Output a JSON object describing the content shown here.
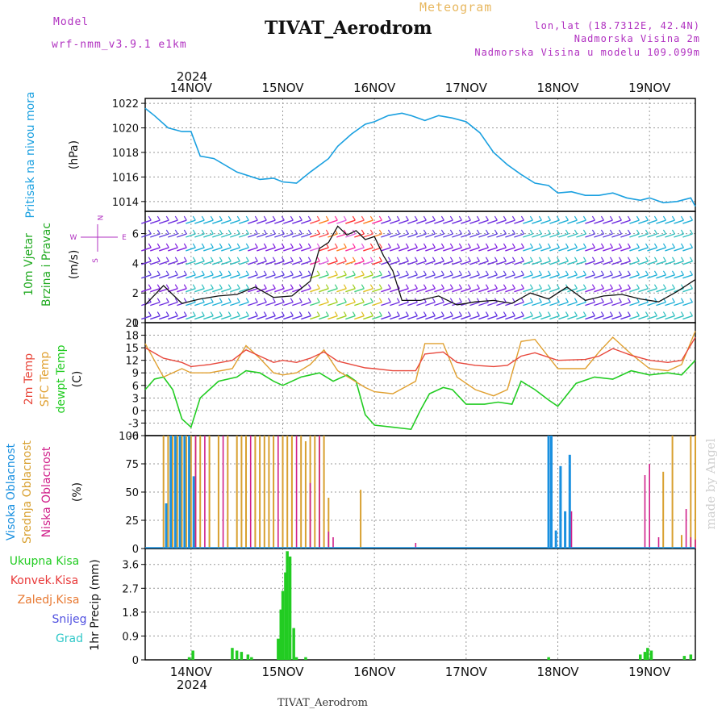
{
  "header": {
    "model_caption": "Model",
    "model_name": "wrf-nmm_v3.9.1 e1km",
    "product": "Meteogram",
    "station_title": "TIVAT_Aerodrom",
    "coords": "lon,lat (18.7312E, 42.4N)",
    "elevation": "Nadmorska Visina 2m",
    "model_elevation": "Nadmorska Visina u modelu 109.099m",
    "year_top": "2024",
    "year_bottom": "2024",
    "footer_station": "TIVAT_Aerodrom",
    "watermark": "made by Angel"
  },
  "colors": {
    "pressure": "#1aa0e0",
    "temp2m": "#e8483c",
    "sfc_temp": "#e0a030",
    "dewpoint": "#22cc22",
    "high_cloud": "#1a90e0",
    "mid_cloud": "#d8a030",
    "low_cloud": "#d0208a",
    "precip_total": "#22cc22",
    "wind_label": "#22aa22",
    "model_text": "#b030c0"
  },
  "chart_data": [
    {
      "type": "line",
      "id": "pressure",
      "ylabel_left": "Pritisak na nivou mora",
      "unit": "(hPa)",
      "x_labels": [
        "14NOV",
        "15NOV",
        "16NOV",
        "17NOV",
        "18NOV",
        "19NOV"
      ],
      "x_range_days": [
        13.5,
        19.5
      ],
      "ylim": [
        1013.2,
        1022.4
      ],
      "yticks": [
        "1014",
        "1016",
        "1018",
        "1020",
        "1022"
      ],
      "series": [
        {
          "name": "Pritisak na nivou mora",
          "x": [
            13.5,
            13.6,
            13.75,
            13.9,
            14.0,
            14.1,
            14.25,
            14.5,
            14.75,
            14.9,
            15.0,
            15.15,
            15.3,
            15.5,
            15.6,
            15.75,
            15.9,
            16.0,
            16.15,
            16.3,
            16.4,
            16.55,
            16.7,
            16.85,
            17.0,
            17.15,
            17.3,
            17.45,
            17.6,
            17.75,
            17.9,
            18.0,
            18.15,
            18.3,
            18.45,
            18.6,
            18.75,
            18.9,
            19.0,
            19.15,
            19.3,
            19.45,
            19.5
          ],
          "y": [
            1021.6,
            1021.0,
            1020.0,
            1019.7,
            1019.7,
            1017.7,
            1017.5,
            1016.4,
            1015.8,
            1015.9,
            1015.6,
            1015.5,
            1016.4,
            1017.5,
            1018.5,
            1019.5,
            1020.3,
            1020.5,
            1021.0,
            1021.2,
            1021.0,
            1020.6,
            1021.0,
            1020.8,
            1020.5,
            1019.6,
            1018.0,
            1017.0,
            1016.2,
            1015.5,
            1015.3,
            1014.7,
            1014.8,
            1014.5,
            1014.5,
            1014.7,
            1014.3,
            1014.1,
            1014.3,
            1013.9,
            1014.0,
            1014.3,
            1013.6
          ]
        }
      ]
    },
    {
      "type": "barb",
      "id": "wind",
      "ylabel_left": "10m Vjetar",
      "ylabel_left2": "Brzina i Pravac",
      "unit": "(m/s)",
      "compass": "N",
      "compass_w": "W",
      "compass_e": "E",
      "compass_s": "S",
      "ylim": [
        0,
        7.5
      ],
      "yticks": [
        "0",
        "2",
        "4",
        "6"
      ],
      "speed_x": [
        13.5,
        13.7,
        13.9,
        14.1,
        14.3,
        14.5,
        14.7,
        14.9,
        15.1,
        15.3,
        15.4,
        15.5,
        15.6,
        15.7,
        15.8,
        15.9,
        16.0,
        16.1,
        16.2,
        16.3,
        16.5,
        16.7,
        16.9,
        17.1,
        17.3,
        17.5,
        17.7,
        17.9,
        18.1,
        18.3,
        18.5,
        18.7,
        18.9,
        19.1,
        19.3,
        19.5
      ],
      "speed_y": [
        1.2,
        2.5,
        1.3,
        1.6,
        1.8,
        1.9,
        2.4,
        1.7,
        1.8,
        2.8,
        5.0,
        5.4,
        6.5,
        5.9,
        6.2,
        5.6,
        5.8,
        4.5,
        3.5,
        1.5,
        1.5,
        1.8,
        1.2,
        1.4,
        1.5,
        1.3,
        2.0,
        1.6,
        2.4,
        1.5,
        1.8,
        1.9,
        1.6,
        1.4,
        2.1,
        2.9
      ]
    },
    {
      "type": "line",
      "id": "temperature",
      "ylabel_left": "2m Temp",
      "ylabel_left2": "SFC Temp",
      "ylabel_left3": "dewpt Temp",
      "unit": "(C)",
      "ylim": [
        -6,
        21
      ],
      "yticks": [
        "-6",
        "-3",
        "0",
        "3",
        "6",
        "9",
        "12",
        "15",
        "18",
        "21"
      ],
      "series": [
        {
          "name": "2m Temp",
          "x": [
            13.5,
            13.7,
            13.9,
            14.0,
            14.2,
            14.45,
            14.6,
            14.75,
            14.9,
            15.0,
            15.15,
            15.3,
            15.45,
            15.6,
            15.9,
            16.0,
            16.2,
            16.45,
            16.55,
            16.75,
            16.9,
            17.1,
            17.3,
            17.45,
            17.6,
            17.75,
            18.0,
            18.3,
            18.45,
            18.6,
            18.8,
            19.0,
            19.2,
            19.35,
            19.5
          ],
          "y": [
            15,
            12.5,
            11.5,
            10.5,
            11,
            12,
            14.5,
            13,
            11.5,
            12,
            11.5,
            12.5,
            14,
            11.8,
            10.2,
            10,
            9.5,
            9.5,
            13.5,
            14,
            11.5,
            10.8,
            10.5,
            10.8,
            13,
            13.8,
            12,
            12.2,
            13,
            14.8,
            13.2,
            12,
            11.5,
            12,
            17.5
          ]
        },
        {
          "name": "SFC Temp",
          "x": [
            13.5,
            13.7,
            13.9,
            14.0,
            14.2,
            14.45,
            14.6,
            14.75,
            14.9,
            15.0,
            15.15,
            15.3,
            15.45,
            15.6,
            15.9,
            16.0,
            16.2,
            16.45,
            16.55,
            16.75,
            16.9,
            17.1,
            17.3,
            17.45,
            17.6,
            17.75,
            18.0,
            18.3,
            18.45,
            18.6,
            18.8,
            19.0,
            19.2,
            19.35,
            19.5
          ],
          "y": [
            16,
            8,
            10,
            9,
            9,
            10,
            15.5,
            12.5,
            9,
            8.5,
            9,
            11,
            14.5,
            9.5,
            5.5,
            4.5,
            4,
            7,
            16,
            16,
            8,
            5,
            3.5,
            5,
            16.5,
            17,
            10,
            10,
            14,
            17.5,
            13.5,
            10,
            9.5,
            11,
            19
          ]
        },
        {
          "name": "dewpt Temp",
          "x": [
            13.5,
            13.6,
            13.7,
            13.8,
            13.9,
            14.0,
            14.1,
            14.3,
            14.5,
            14.6,
            14.75,
            14.9,
            15.0,
            15.2,
            15.4,
            15.55,
            15.7,
            15.8,
            15.9,
            16.0,
            16.2,
            16.4,
            16.5,
            16.6,
            16.75,
            16.85,
            17.0,
            17.2,
            17.35,
            17.5,
            17.6,
            17.75,
            17.9,
            18.0,
            18.2,
            18.4,
            18.6,
            18.8,
            19.0,
            19.2,
            19.35,
            19.5
          ],
          "y": [
            5,
            7.5,
            8,
            5,
            -2,
            -4,
            3,
            7,
            8,
            9.5,
            9,
            7,
            6,
            8,
            9,
            7,
            8.5,
            7,
            -1,
            -3.5,
            -4,
            -4.5,
            0,
            4,
            5.5,
            5,
            1.5,
            1.5,
            2,
            1.5,
            7,
            5,
            2.5,
            1,
            6.5,
            8,
            7.5,
            9.5,
            8.5,
            9,
            8.5,
            12
          ]
        }
      ]
    },
    {
      "type": "bar",
      "id": "cloud",
      "ylabel_left": "Visoka Oblacnost",
      "ylabel_left2": "Srednja Oblacnost",
      "ylabel_left3": "Niska Oblacnost",
      "unit": "(%)",
      "ylim": [
        0,
        100
      ],
      "yticks": [
        "0",
        "25",
        "50",
        "75",
        "100"
      ],
      "series": [
        {
          "name": "Visoka Oblacnost",
          "x": [
            13.73,
            13.78,
            13.83,
            13.88,
            13.93,
            13.98,
            14.03,
            17.9,
            17.93,
            17.98,
            18.03,
            18.08,
            18.13
          ],
          "y": [
            40,
            100,
            100,
            100,
            100,
            100,
            64,
            100,
            100,
            16,
            73,
            33,
            83
          ]
        },
        {
          "name": "Srednja Oblacnost",
          "x": [
            13.7,
            13.75,
            13.8,
            13.85,
            13.9,
            13.95,
            14.0,
            14.05,
            14.1,
            14.2,
            14.3,
            14.4,
            14.5,
            14.55,
            14.6,
            14.7,
            14.75,
            14.8,
            14.85,
            14.9,
            15.0,
            15.05,
            15.1,
            15.2,
            15.25,
            15.3,
            15.35,
            15.4,
            15.45,
            15.5,
            15.85,
            19.15,
            19.25,
            19.35,
            19.45,
            19.5
          ],
          "y": [
            100,
            100,
            100,
            100,
            100,
            100,
            100,
            100,
            100,
            100,
            100,
            100,
            100,
            100,
            100,
            100,
            100,
            100,
            100,
            100,
            100,
            100,
            100,
            100,
            95,
            100,
            100,
            100,
            100,
            45,
            52,
            68,
            100,
            12,
            100,
            100
          ]
        },
        {
          "name": "Niska Oblacnost",
          "x": [
            14.05,
            14.15,
            14.35,
            14.65,
            14.95,
            15.15,
            15.3,
            15.4,
            15.5,
            15.55,
            16.45,
            18.15,
            18.95,
            19.0,
            19.1,
            19.4,
            19.45,
            19.5
          ],
          "y": [
            100,
            100,
            100,
            100,
            100,
            100,
            58,
            100,
            15,
            10,
            5,
            33,
            65,
            75,
            10,
            35,
            10,
            8
          ]
        }
      ]
    },
    {
      "type": "bar",
      "id": "precip",
      "ylabel_left": "1hr Precip",
      "unit": "(mm)",
      "legend": [
        "Ukupna Kisa",
        "Konvek.Kisa",
        "Zaledj.Kisa",
        "Snijeg",
        "Grad"
      ],
      "ylim": [
        0,
        4.2
      ],
      "yticks": [
        "0",
        "0.9",
        "1.8",
        "2.7",
        "3.6"
      ],
      "x_labels": [
        "14NOV",
        "15NOV",
        "16NOV",
        "17NOV",
        "18NOV",
        "19NOV"
      ],
      "series": [
        {
          "name": "Ukupna Kisa",
          "x": [
            13.98,
            14.02,
            14.45,
            14.5,
            14.55,
            14.62,
            14.66,
            14.95,
            14.98,
            15.0,
            15.03,
            15.05,
            15.08,
            15.12,
            15.15,
            15.25,
            17.9,
            18.9,
            18.95,
            18.98,
            19.02,
            19.38,
            19.45
          ],
          "y": [
            0.1,
            0.35,
            0.45,
            0.35,
            0.3,
            0.2,
            0.1,
            0.8,
            1.9,
            2.6,
            3.3,
            4.1,
            3.9,
            1.2,
            0.1,
            0.1,
            0.1,
            0.2,
            0.3,
            0.45,
            0.35,
            0.15,
            0.2
          ]
        }
      ]
    }
  ]
}
